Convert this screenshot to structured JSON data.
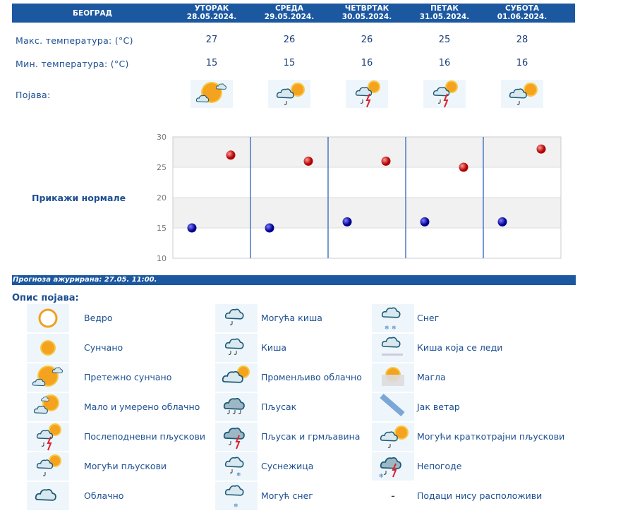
{
  "header": {
    "city": "БЕОГРАД",
    "days": [
      {
        "name": "УТОРАК",
        "date": "28.05.2024.",
        "max": "27",
        "min": "15",
        "icon": "storm-showers-variable",
        "iconName": "mostly-sunny"
      },
      {
        "name": "СРЕДА",
        "date": "29.05.2024.",
        "max": "26",
        "min": "15",
        "iconName": "possible-short-showers"
      },
      {
        "name": "ЧЕТВРТАК",
        "date": "30.05.2024.",
        "max": "26",
        "min": "16",
        "iconName": "afternoon-storm"
      },
      {
        "name": "ПЕТАК",
        "date": "31.05.2024.",
        "max": "25",
        "min": "16",
        "iconName": "afternoon-storm"
      },
      {
        "name": "СУБОТА",
        "date": "01.06.2024.",
        "max": "28",
        "min": "16",
        "iconName": "possible-short-showers"
      }
    ]
  },
  "rows": {
    "max_label": "Макс. температура: (°C)",
    "min_label": "Мин. температура: (°C)",
    "phenomenon_label": "Појава:"
  },
  "show_normals": "Прикажи нормале",
  "chart_data": {
    "type": "scatter",
    "yticks": [
      "30",
      "25",
      "20",
      "15",
      "10"
    ],
    "ylim": [
      10,
      30
    ],
    "grid": true,
    "categories": [
      "28.05.2024.",
      "29.05.2024.",
      "30.05.2024.",
      "31.05.2024.",
      "01.06.2024."
    ],
    "series": [
      {
        "values": [
          27,
          26,
          26,
          25,
          28
        ],
        "color": "#cc0000"
      },
      {
        "values": [
          15,
          15,
          16,
          16,
          16
        ],
        "color": "#0000aa"
      }
    ]
  },
  "updated": "Прогноза ажурирана:  27.05. 11:00.",
  "legend_title": "Опис појава:",
  "legend": [
    {
      "label": "Ведро",
      "icon": "clear"
    },
    {
      "label": "Сунчано",
      "icon": "sunny"
    },
    {
      "label": "Претежно сунчано",
      "icon": "mostly-sunny"
    },
    {
      "label": "Мало и умерено облачно",
      "icon": "partly-cloudy"
    },
    {
      "label": "Послеподневни пљускови",
      "icon": "afternoon-storm"
    },
    {
      "label": "Могући пљускови",
      "icon": "possible-showers"
    },
    {
      "label": "Облачно",
      "icon": "cloudy"
    },
    {
      "label": "Могућа киша",
      "icon": "possible-rain"
    },
    {
      "label": "Киша",
      "icon": "rain"
    },
    {
      "label": "Променљиво облачно",
      "icon": "variable"
    },
    {
      "label": "Пљусак",
      "icon": "shower"
    },
    {
      "label": "Пљусак и грмљавина",
      "icon": "thunder-shower"
    },
    {
      "label": "Суснежица",
      "icon": "sleet"
    },
    {
      "label": "Могућ снег",
      "icon": "possible-snow"
    },
    {
      "label": "Снег",
      "icon": "snow"
    },
    {
      "label": "Киша која се леди",
      "icon": "freezing-rain"
    },
    {
      "label": "Магла",
      "icon": "fog"
    },
    {
      "label": "Јак ветар",
      "icon": "wind"
    },
    {
      "label": "Могући краткотрајни пљускови",
      "icon": "possible-short-showers"
    },
    {
      "label": "Непогоде",
      "icon": "severe-storm"
    },
    {
      "label": "Подаци нису расположиви",
      "icon": "none",
      "symbol": "-"
    }
  ]
}
